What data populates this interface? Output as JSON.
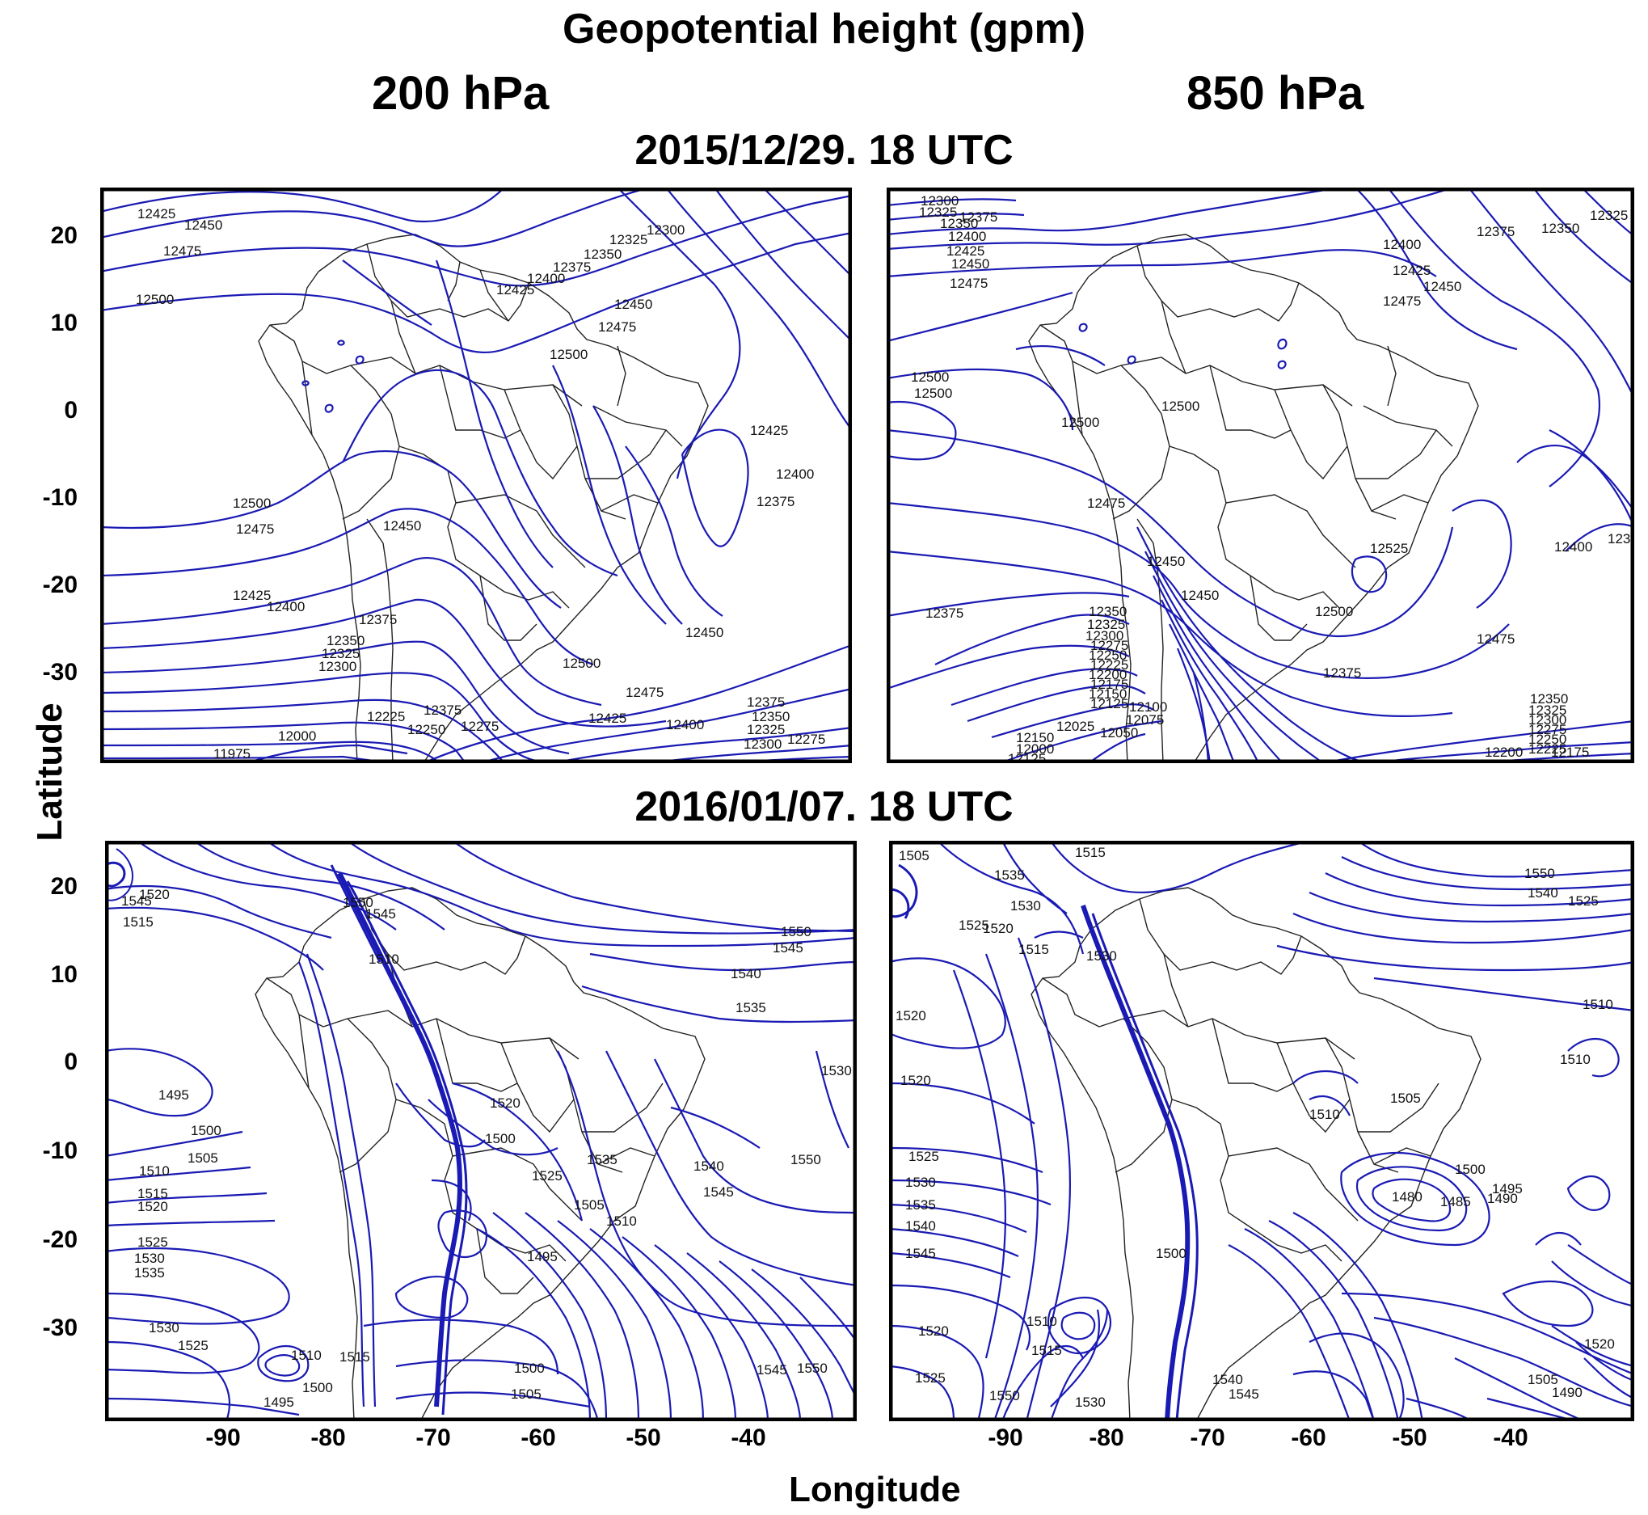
{
  "title": "Geopotential height (gpm)",
  "level_left": "200 hPa",
  "level_right": "850 hPa",
  "date_top": "2015/12/29.  18 UTC",
  "date_bottom": "2016/01/07.  18 UTC",
  "y_axis_label": "Latitude",
  "x_axis_label": "Longitude",
  "y_ticks": [
    "20",
    "10",
    "0",
    "-10",
    "-20",
    "-30"
  ],
  "x_ticks": [
    "-90",
    "-80",
    "-70",
    "-60",
    "-50",
    "-40"
  ],
  "colors": {
    "contour": "#1a1ab4",
    "border": "#222222",
    "frame": "#000000"
  },
  "panels": [
    {
      "id": "200hpa-2015-12-29",
      "labels": [
        "12425",
        "12450",
        "12475",
        "12500",
        "12300",
        "12325",
        "12350",
        "12375",
        "12400",
        "12425",
        "12450",
        "12475",
        "12500",
        "12425",
        "12400",
        "12375",
        "12500",
        "12475",
        "12450",
        "12425",
        "12400",
        "12375",
        "12350",
        "12325",
        "12300",
        "12500",
        "12475",
        "12425",
        "12400",
        "12450",
        "12375",
        "12275",
        "12250",
        "12225",
        "12000",
        "11975",
        "12375",
        "12350",
        "12325",
        "12300",
        "12275"
      ]
    },
    {
      "id": "850hpa-2015-12-29",
      "labels": [
        "12300",
        "12325",
        "12350",
        "12375",
        "12400",
        "12425",
        "12450",
        "12475",
        "12400",
        "12375",
        "12350",
        "12325",
        "12425",
        "12450",
        "12475",
        "12500",
        "12500",
        "12500",
        "12500",
        "12475",
        "12450",
        "12375",
        "12350",
        "12325",
        "12300",
        "12275",
        "12250",
        "12225",
        "12200",
        "12175",
        "12150",
        "12125",
        "12100",
        "12075",
        "12050",
        "12025",
        "12000",
        "12475",
        "12400",
        "12350",
        "12450",
        "12500",
        "12525",
        "12375",
        "12350",
        "12325",
        "12300",
        "12275",
        "12250",
        "12225",
        "12200",
        "12175",
        "12150",
        "12125"
      ]
    },
    {
      "id": "200hpa-2016-01-07",
      "labels": [
        "1520",
        "1515",
        "1545",
        "1550",
        "1545",
        "1510",
        "1550",
        "1545",
        "1540",
        "1535",
        "1530",
        "1495",
        "1500",
        "1505",
        "1510",
        "1515",
        "1520",
        "1525",
        "1530",
        "1535",
        "1530",
        "1525",
        "1520",
        "1535",
        "1540",
        "1545",
        "1550",
        "1525",
        "1500",
        "1505",
        "1510",
        "1495",
        "1500",
        "1505",
        "1510",
        "1515",
        "1545",
        "1550",
        "1495",
        "1500"
      ]
    },
    {
      "id": "850hpa-2016-01-07",
      "labels": [
        "1505",
        "1515",
        "1550",
        "1540",
        "1535",
        "1530",
        "1525",
        "1520",
        "1515",
        "1530",
        "1525",
        "1510",
        "1510",
        "1520",
        "1520",
        "1525",
        "1530",
        "1535",
        "1540",
        "1545",
        "1505",
        "1510",
        "1500",
        "1495",
        "1490",
        "1485",
        "1480",
        "1500",
        "1510",
        "1515",
        "1520",
        "1525",
        "1530",
        "1540",
        "1545",
        "1550",
        "1490",
        "1505",
        "1520"
      ]
    }
  ]
}
